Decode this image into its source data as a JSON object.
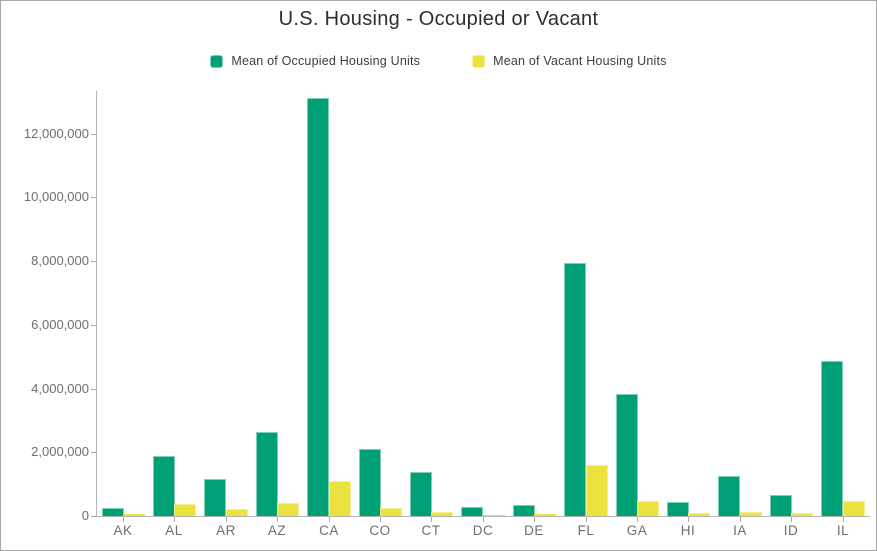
{
  "chart_data": {
    "type": "bar",
    "title": "U.S. Housing - Occupied or Vacant",
    "categories": [
      "AK",
      "AL",
      "AR",
      "AZ",
      "CA",
      "CO",
      "CT",
      "DC",
      "DE",
      "FL",
      "GA",
      "HI",
      "IA",
      "ID",
      "IL"
    ],
    "series": [
      {
        "name": "Mean of Occupied Housing Units",
        "color": "#00a077",
        "border_color": "#7fd0b4",
        "values": [
          250000,
          1880000,
          1160000,
          2630000,
          13110000,
          2100000,
          1380000,
          280000,
          350000,
          7940000,
          3830000,
          440000,
          1250000,
          660000,
          4860000
        ]
      },
      {
        "name": "Mean of Vacant Housing Units",
        "color": "#ebe23f",
        "border_color": "#f5ef94",
        "values": [
          60000,
          380000,
          220000,
          410000,
          1100000,
          240000,
          130000,
          20000,
          70000,
          1600000,
          470000,
          95000,
          125000,
          90000,
          470000
        ]
      }
    ],
    "xlabel": "",
    "ylabel": "",
    "ylim": [
      0,
      13300000
    ],
    "grid": false,
    "legend_position": "top",
    "y_ticks": [
      {
        "value": 0,
        "label": "0"
      },
      {
        "value": 2000000,
        "label": "2,000,000"
      },
      {
        "value": 4000000,
        "label": "4,000,000"
      },
      {
        "value": 6000000,
        "label": "6,000,000"
      },
      {
        "value": 8000000,
        "label": "8,000,000"
      },
      {
        "value": 10000000,
        "label": "10,000,000"
      },
      {
        "value": 12000000,
        "label": "12,000,000"
      }
    ]
  }
}
